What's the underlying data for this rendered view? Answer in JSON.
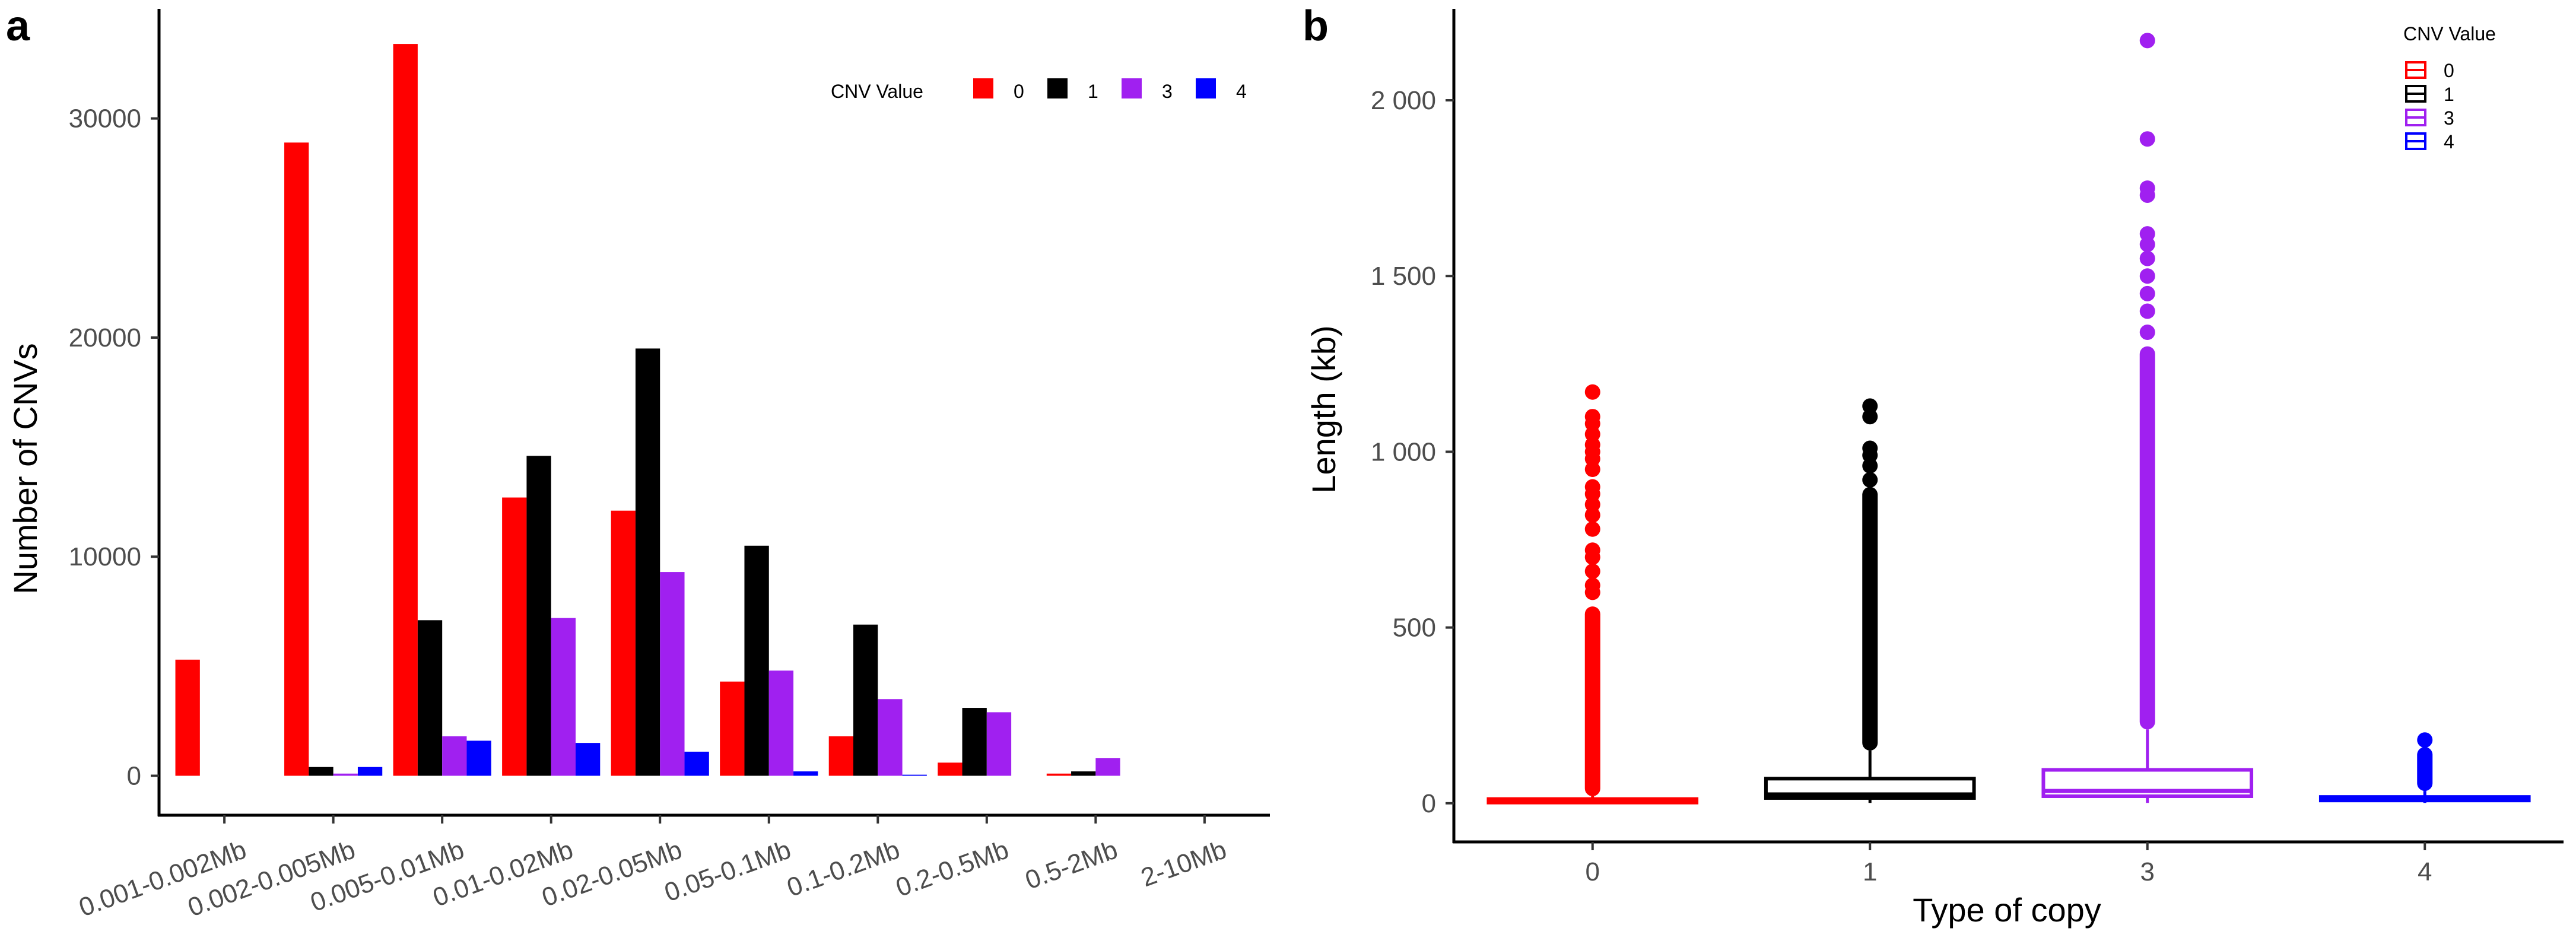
{
  "panel_a": {
    "letter": "a",
    "chart_data": {
      "type": "bar",
      "categories": [
        "0.001-0.002Mb",
        "0.002-0.005Mb",
        "0.005-0.01Mb",
        "0.01-0.02Mb",
        "0.02-0.05Mb",
        "0.05-0.1Mb",
        "0.1-0.2Mb",
        "0.2-0.5Mb",
        "0.5-2Mb",
        "2-10Mb"
      ],
      "series": [
        {
          "name": "0",
          "color": "#ff0000",
          "values": [
            5300,
            28900,
            33400,
            12700,
            12100,
            4300,
            1800,
            600,
            100,
            0
          ]
        },
        {
          "name": "1",
          "color": "#000000",
          "values": [
            0,
            400,
            7100,
            14600,
            19500,
            10500,
            6900,
            3100,
            200,
            0
          ]
        },
        {
          "name": "3",
          "color": "#a020f0",
          "values": [
            0,
            100,
            1800,
            7200,
            9300,
            4800,
            3500,
            2900,
            800,
            0
          ]
        },
        {
          "name": "4",
          "color": "#0000ff",
          "values": [
            0,
            400,
            1600,
            1500,
            1100,
            200,
            50,
            0,
            0,
            0
          ]
        }
      ],
      "xlabel": "",
      "ylabel": "Number of CNVs",
      "ylim": [
        -1800,
        35000
      ],
      "yticks": [
        0,
        10000,
        20000,
        30000
      ],
      "ytick_labels": [
        "0",
        "10000",
        "20000",
        "30000"
      ],
      "legend": {
        "title": "CNV Value",
        "position": "top-right"
      },
      "grid": false
    }
  },
  "panel_b": {
    "letter": "b",
    "chart_data": {
      "type": "box",
      "categories": [
        "0",
        "1",
        "3",
        "4"
      ],
      "series": [
        {
          "name": "0",
          "color": "#ff0000",
          "q1": 5,
          "median": 8,
          "q3": 12,
          "whisker_low": 1,
          "whisker_high": 20,
          "outlier_band": [
            20,
            560
          ],
          "outliers": [
            600,
            620,
            660,
            700,
            720,
            780,
            820,
            850,
            880,
            900,
            950,
            980,
            1000,
            1020,
            1050,
            1080,
            1100,
            1170
          ]
        },
        {
          "name": "1",
          "color": "#000000",
          "q1": 15,
          "median": 25,
          "q3": 70,
          "whisker_low": 1,
          "whisker_high": 150,
          "outlier_band": [
            150,
            900
          ],
          "outliers": [
            920,
            960,
            990,
            1010,
            1100,
            1130
          ]
        },
        {
          "name": "3",
          "color": "#a020f0",
          "q1": 20,
          "median": 35,
          "q3": 95,
          "whisker_low": 1,
          "whisker_high": 210,
          "outlier_band": [
            210,
            1300
          ],
          "outliers": [
            1340,
            1400,
            1450,
            1500,
            1550,
            1590,
            1620,
            1730,
            1750,
            1890,
            2170
          ]
        },
        {
          "name": "4",
          "color": "#0000ff",
          "q1": 10,
          "median": 12,
          "q3": 18,
          "whisker_low": 1,
          "whisker_high": 35,
          "outlier_band": [
            35,
            160
          ],
          "outliers": [
            180
          ]
        }
      ],
      "xlabel": "Type of copy",
      "ylabel": "Length (kb)",
      "ylim": [
        -110,
        2260
      ],
      "yticks": [
        0,
        500,
        1000,
        1500,
        2000
      ],
      "ytick_labels": [
        "0",
        "500",
        "1 000",
        "1 500",
        "2 000"
      ],
      "legend": {
        "title": "CNV Value",
        "position": "top-right"
      },
      "grid": false
    }
  }
}
